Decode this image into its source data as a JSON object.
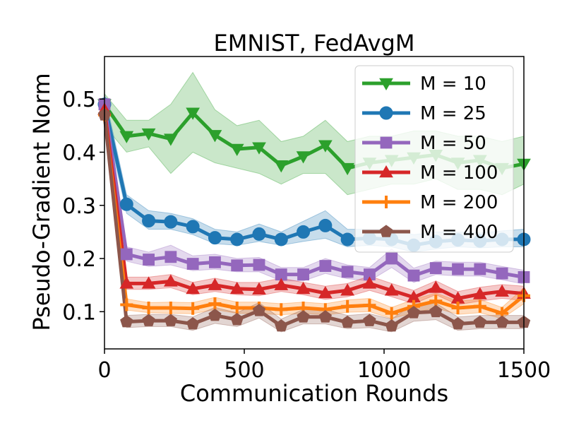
{
  "chart_data": {
    "type": "line",
    "title": "EMNIST, FedAvgM",
    "xlabel": "Communication Rounds",
    "ylabel": "Pseudo-Gradient Norm",
    "xlim": [
      0,
      1500
    ],
    "ylim": [
      0.03,
      0.58
    ],
    "xticks": [
      "0",
      "500",
      "1000",
      "1500"
    ],
    "yticks": [
      "0.1",
      "0.2",
      "0.3",
      "0.4",
      "0.5"
    ],
    "grid": false,
    "legend_position": "upper-right",
    "x": [
      0,
      79,
      158,
      237,
      316,
      395,
      474,
      553,
      632,
      711,
      790,
      869,
      948,
      1027,
      1106,
      1185,
      1264,
      1343,
      1422,
      1500
    ],
    "series": [
      {
        "name": "M = 10",
        "color": "#2ca02c",
        "marker": "triangle-down",
        "values": [
          0.49,
          0.43,
          0.435,
          0.425,
          0.474,
          0.432,
          0.406,
          0.409,
          0.375,
          0.392,
          0.413,
          0.37,
          0.38,
          0.385,
          0.39,
          0.395,
          0.38,
          0.385,
          0.37,
          0.378
        ],
        "lower": [
          0.45,
          0.4,
          0.41,
          0.36,
          0.4,
          0.38,
          0.37,
          0.36,
          0.34,
          0.36,
          0.36,
          0.32,
          0.33,
          0.34,
          0.34,
          0.35,
          0.33,
          0.33,
          0.32,
          0.34
        ],
        "upper": [
          0.51,
          0.46,
          0.46,
          0.49,
          0.55,
          0.48,
          0.45,
          0.46,
          0.42,
          0.43,
          0.46,
          0.42,
          0.43,
          0.43,
          0.44,
          0.44,
          0.43,
          0.43,
          0.42,
          0.43
        ]
      },
      {
        "name": "M = 25",
        "color": "#1f77b4",
        "marker": "circle",
        "values": [
          0.49,
          0.302,
          0.271,
          0.269,
          0.26,
          0.239,
          0.236,
          0.246,
          0.236,
          0.25,
          0.262,
          0.236,
          0.238,
          0.236,
          0.225,
          0.232,
          0.235,
          0.233,
          0.236,
          0.236
        ],
        "lower": [
          0.47,
          0.285,
          0.255,
          0.255,
          0.245,
          0.228,
          0.225,
          0.232,
          0.225,
          0.232,
          0.238,
          0.222,
          0.225,
          0.222,
          0.212,
          0.218,
          0.222,
          0.22,
          0.222,
          0.222
        ],
        "upper": [
          0.51,
          0.32,
          0.29,
          0.285,
          0.275,
          0.255,
          0.25,
          0.265,
          0.25,
          0.27,
          0.29,
          0.255,
          0.255,
          0.255,
          0.245,
          0.25,
          0.25,
          0.248,
          0.252,
          0.255
        ]
      },
      {
        "name": "M = 50",
        "color": "#9467bd",
        "marker": "square",
        "values": [
          0.49,
          0.208,
          0.198,
          0.203,
          0.19,
          0.193,
          0.187,
          0.188,
          0.17,
          0.17,
          0.186,
          0.175,
          0.17,
          0.2,
          0.168,
          0.182,
          0.18,
          0.18,
          0.172,
          0.165
        ],
        "lower": [
          0.47,
          0.195,
          0.185,
          0.188,
          0.177,
          0.18,
          0.175,
          0.175,
          0.158,
          0.158,
          0.172,
          0.162,
          0.158,
          0.183,
          0.155,
          0.17,
          0.167,
          0.167,
          0.16,
          0.152
        ],
        "upper": [
          0.51,
          0.222,
          0.212,
          0.225,
          0.205,
          0.208,
          0.2,
          0.202,
          0.183,
          0.183,
          0.2,
          0.188,
          0.183,
          0.218,
          0.182,
          0.195,
          0.193,
          0.193,
          0.185,
          0.178
        ]
      },
      {
        "name": "M = 100",
        "color": "#d62728",
        "marker": "triangle-up",
        "values": [
          0.48,
          0.153,
          0.153,
          0.157,
          0.143,
          0.15,
          0.143,
          0.142,
          0.15,
          0.143,
          0.135,
          0.14,
          0.153,
          0.14,
          0.127,
          0.145,
          0.125,
          0.133,
          0.138,
          0.134
        ],
        "lower": [
          0.46,
          0.142,
          0.142,
          0.145,
          0.132,
          0.138,
          0.132,
          0.13,
          0.138,
          0.132,
          0.123,
          0.128,
          0.14,
          0.128,
          0.115,
          0.132,
          0.113,
          0.12,
          0.125,
          0.121
        ],
        "upper": [
          0.5,
          0.165,
          0.165,
          0.17,
          0.155,
          0.163,
          0.155,
          0.155,
          0.163,
          0.155,
          0.148,
          0.153,
          0.167,
          0.153,
          0.14,
          0.158,
          0.138,
          0.146,
          0.151,
          0.148
        ]
      },
      {
        "name": "M = 200",
        "color": "#ff7f0e",
        "marker": "plus",
        "values": [
          0.47,
          0.113,
          0.107,
          0.107,
          0.106,
          0.115,
          0.107,
          0.107,
          0.104,
          0.107,
          0.104,
          0.11,
          0.112,
          0.097,
          0.11,
          0.12,
          0.107,
          0.11,
          0.097,
          0.13
        ],
        "lower": [
          0.45,
          0.103,
          0.098,
          0.097,
          0.096,
          0.104,
          0.097,
          0.097,
          0.094,
          0.097,
          0.094,
          0.099,
          0.1,
          0.087,
          0.098,
          0.107,
          0.095,
          0.098,
          0.087,
          0.115
        ],
        "upper": [
          0.49,
          0.124,
          0.117,
          0.118,
          0.117,
          0.127,
          0.118,
          0.118,
          0.115,
          0.118,
          0.115,
          0.122,
          0.125,
          0.108,
          0.123,
          0.135,
          0.12,
          0.123,
          0.108,
          0.145
        ]
      },
      {
        "name": "M = 400",
        "color": "#8c564b",
        "marker": "pentagon",
        "values": [
          0.47,
          0.081,
          0.083,
          0.083,
          0.077,
          0.093,
          0.085,
          0.102,
          0.073,
          0.09,
          0.09,
          0.08,
          0.083,
          0.073,
          0.098,
          0.1,
          0.077,
          0.08,
          0.08,
          0.08
        ],
        "lower": [
          0.45,
          0.07,
          0.072,
          0.072,
          0.065,
          0.078,
          0.072,
          0.088,
          0.062,
          0.077,
          0.077,
          0.068,
          0.07,
          0.062,
          0.082,
          0.085,
          0.065,
          0.068,
          0.068,
          0.068
        ],
        "upper": [
          0.49,
          0.093,
          0.095,
          0.095,
          0.09,
          0.108,
          0.098,
          0.117,
          0.086,
          0.104,
          0.104,
          0.093,
          0.096,
          0.086,
          0.115,
          0.116,
          0.09,
          0.093,
          0.093,
          0.093
        ]
      }
    ]
  }
}
